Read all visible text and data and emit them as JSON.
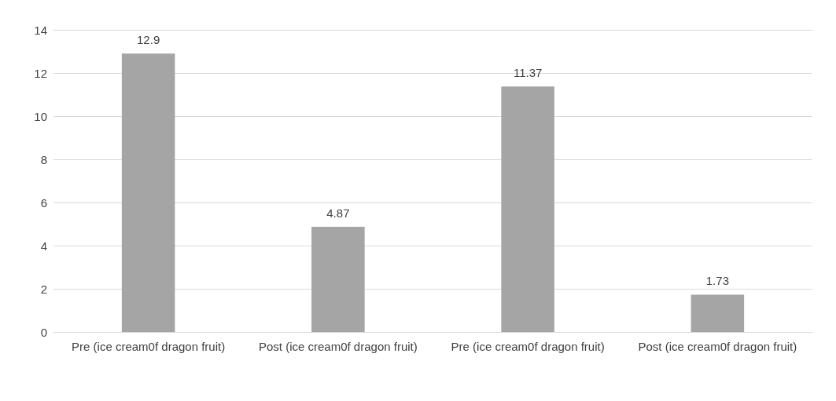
{
  "chart_data": {
    "type": "bar",
    "categories": [
      "Pre (ice cream0f dragon fruit)",
      "Post (ice cream0f dragon fruit)",
      "Pre (ice cream0f dragon fruit)",
      "Post (ice cream0f dragon fruit)"
    ],
    "values": [
      12.9,
      4.87,
      11.37,
      1.73
    ],
    "colors": [
      "#a5a5a5",
      "#a5a5a5",
      "#a5a5a5",
      "#a5a5a5"
    ],
    "ylim": [
      0,
      14
    ],
    "yticks": [
      0,
      2,
      4,
      6,
      8,
      10,
      12,
      14
    ],
    "grid": "y",
    "data_labels": true
  }
}
